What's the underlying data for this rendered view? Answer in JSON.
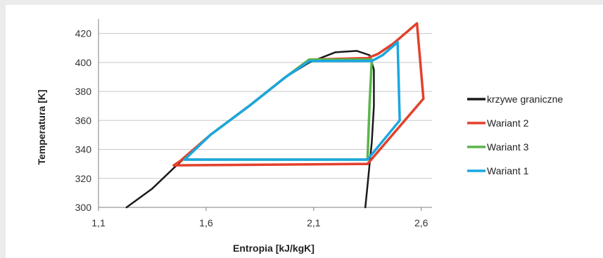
{
  "chart_data": {
    "type": "line",
    "xlabel": "Entropia [kJ/kgK]",
    "ylabel": "Temperatura [K]",
    "xlim": [
      1.1,
      2.65
    ],
    "ylim": [
      300,
      430
    ],
    "x_ticks": [
      "1,1",
      "1,6",
      "2,1",
      "2,6"
    ],
    "x_tick_values": [
      1.1,
      1.6,
      2.1,
      2.6
    ],
    "y_ticks": [
      "300",
      "320",
      "340",
      "360",
      "380",
      "400",
      "420"
    ],
    "y_tick_values": [
      300,
      320,
      340,
      360,
      380,
      400,
      420
    ],
    "grid": "horizontal",
    "legend_position": "right",
    "series": [
      {
        "name": "krzywe graniczne",
        "color": "#1a1a1a",
        "points": [
          [
            1.23,
            300
          ],
          [
            1.35,
            313
          ],
          [
            1.47,
            330
          ],
          [
            1.62,
            350
          ],
          [
            1.8,
            370
          ],
          [
            1.97,
            390
          ],
          [
            2.08,
            400
          ],
          [
            2.2,
            407
          ],
          [
            2.3,
            408
          ],
          [
            2.36,
            405
          ],
          [
            2.38,
            395
          ],
          [
            2.38,
            370
          ],
          [
            2.37,
            345
          ],
          [
            2.36,
            330
          ],
          [
            2.35,
            315
          ],
          [
            2.34,
            300
          ]
        ]
      },
      {
        "name": "Wariant 2",
        "color": "#e2412b",
        "points": [
          [
            1.45,
            329
          ],
          [
            1.48,
            332
          ],
          [
            1.62,
            350
          ],
          [
            1.8,
            370
          ],
          [
            1.97,
            390
          ],
          [
            2.08,
            402
          ],
          [
            2.35,
            403
          ],
          [
            2.4,
            406
          ],
          [
            2.47,
            413
          ],
          [
            2.58,
            427
          ],
          [
            2.61,
            375
          ],
          [
            2.35,
            330
          ],
          [
            1.45,
            329
          ]
        ]
      },
      {
        "name": "Wariant 3",
        "color": "#5ab54b",
        "points": [
          [
            1.5,
            333
          ],
          [
            1.62,
            350
          ],
          [
            1.8,
            370
          ],
          [
            1.97,
            390
          ],
          [
            2.08,
            402
          ],
          [
            2.37,
            402
          ],
          [
            2.36,
            372
          ],
          [
            2.35,
            333
          ],
          [
            1.5,
            333
          ]
        ]
      },
      {
        "name": "Wariant 1",
        "color": "#1aa7e0",
        "points": [
          [
            1.5,
            333
          ],
          [
            1.62,
            350
          ],
          [
            1.8,
            370
          ],
          [
            1.97,
            390
          ],
          [
            2.08,
            401
          ],
          [
            2.37,
            401
          ],
          [
            2.42,
            405
          ],
          [
            2.49,
            414
          ],
          [
            2.5,
            360
          ],
          [
            2.35,
            333
          ],
          [
            1.5,
            333
          ]
        ]
      }
    ]
  }
}
